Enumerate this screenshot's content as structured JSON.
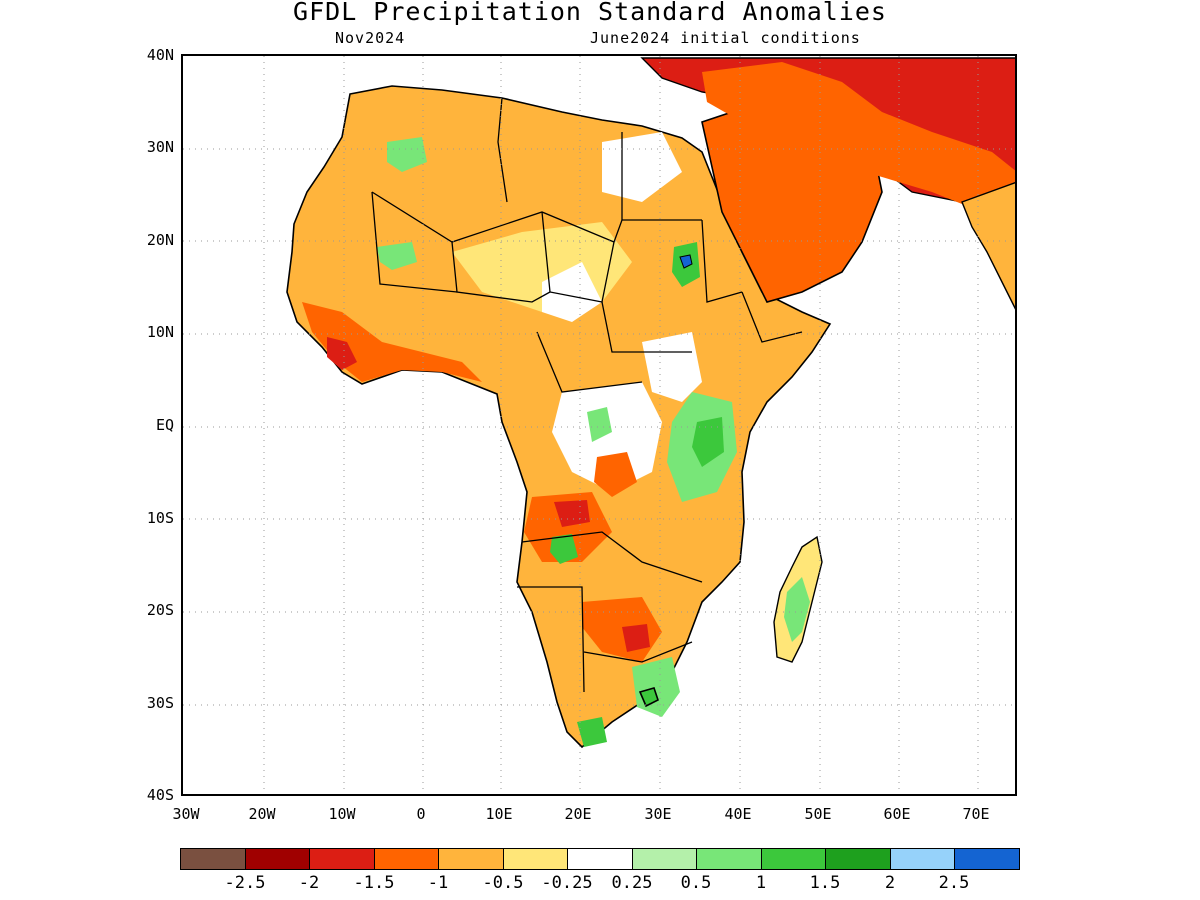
{
  "title": "GFDL Precipitation Standard Anomalies",
  "subtitle_left": "Nov2024",
  "subtitle_right": "June2024 initial conditions",
  "lat_labels": [
    "40N",
    "30N",
    "20N",
    "10N",
    "EQ",
    "10S",
    "20S",
    "30S",
    "40S"
  ],
  "lon_labels": [
    "30W",
    "20W",
    "10W",
    "0",
    "10E",
    "20E",
    "30E",
    "40E",
    "50E",
    "60E",
    "70E"
  ],
  "legend": {
    "colors": [
      "#7a5040",
      "#a00000",
      "#dc1e14",
      "#ff6400",
      "#ffb43c",
      "#ffe678",
      "#ffffff",
      "#b4f0aa",
      "#78e678",
      "#3cc83c",
      "#1ea01e",
      "#96d2fa",
      "#1464d2"
    ],
    "labels": [
      "-2.5",
      "-2",
      "-1.5",
      "-1",
      "-0.5",
      "-0.25",
      "0.25",
      "0.5",
      "1",
      "1.5",
      "2",
      "2.5"
    ]
  },
  "map": {
    "region": "Africa",
    "lon_range": [
      -30,
      75
    ],
    "lat_range": [
      -40,
      40
    ],
    "grid": "dotted",
    "fill_colors": {
      "dry": "#ffb43c",
      "slightly_dry": "#ffe678",
      "very_dry": "#ff6400",
      "extreme_dry": "#dc1e14",
      "wet": "#78e678",
      "very_wet": "#3cc83c"
    }
  }
}
